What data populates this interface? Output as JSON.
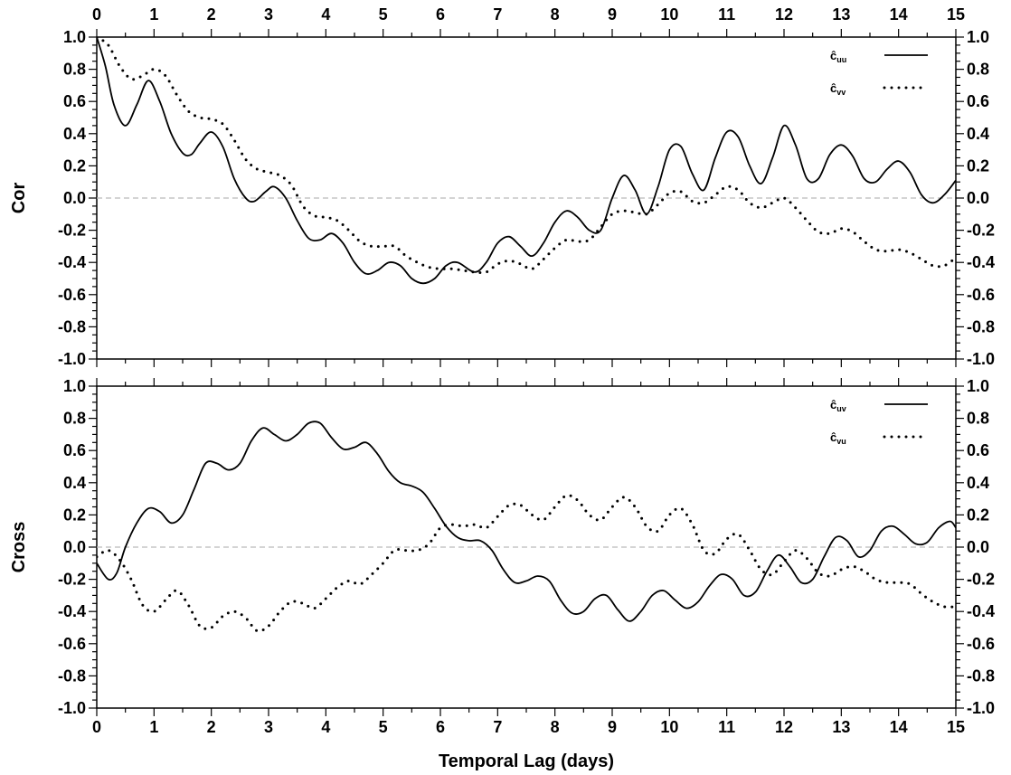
{
  "xlabel": "Temporal Lag (days)",
  "x_ticks": [
    "0",
    "1",
    "2",
    "3",
    "4",
    "5",
    "6",
    "7",
    "8",
    "9",
    "10",
    "11",
    "12",
    "13",
    "14",
    "15"
  ],
  "y_ticks": [
    "1.0",
    "0.8",
    "0.6",
    "0.4",
    "0.2",
    "0.0",
    "-0.2",
    "-0.4",
    "-0.6",
    "-0.8",
    "-1.0"
  ],
  "chart_data": [
    {
      "type": "line",
      "ylabel": "Cor",
      "xlim": [
        0,
        15
      ],
      "ylim": [
        -1.0,
        1.0
      ],
      "zero_line": {
        "style": "dashed",
        "color": "#bbbbbb"
      },
      "legend_position": "top-right",
      "series": [
        {
          "name": "ĉuu",
          "name_main": "ĉ",
          "name_sub": "uu",
          "style": "solid",
          "x": [
            0,
            0.15,
            0.3,
            0.5,
            0.7,
            0.9,
            1.1,
            1.3,
            1.5,
            1.65,
            1.8,
            2.0,
            2.2,
            2.4,
            2.6,
            2.75,
            2.95,
            3.1,
            3.3,
            3.5,
            3.7,
            3.9,
            4.1,
            4.3,
            4.5,
            4.7,
            4.9,
            5.1,
            5.3,
            5.5,
            5.7,
            5.9,
            6.1,
            6.3,
            6.6,
            6.8,
            7.0,
            7.2,
            7.4,
            7.6,
            7.8,
            8.0,
            8.2,
            8.4,
            8.6,
            8.8,
            9.0,
            9.2,
            9.4,
            9.6,
            9.8,
            10.0,
            10.2,
            10.4,
            10.6,
            10.8,
            11.0,
            11.2,
            11.4,
            11.6,
            11.8,
            12.0,
            12.2,
            12.4,
            12.6,
            12.8,
            13.0,
            13.2,
            13.4,
            13.6,
            13.8,
            14.0,
            14.2,
            14.4,
            14.6,
            14.8,
            15.0
          ],
          "y": [
            1.0,
            0.82,
            0.58,
            0.45,
            0.58,
            0.73,
            0.6,
            0.4,
            0.28,
            0.27,
            0.34,
            0.41,
            0.32,
            0.12,
            0.0,
            -0.02,
            0.04,
            0.07,
            0.0,
            -0.14,
            -0.25,
            -0.26,
            -0.22,
            -0.28,
            -0.4,
            -0.47,
            -0.45,
            -0.4,
            -0.42,
            -0.5,
            -0.53,
            -0.5,
            -0.42,
            -0.4,
            -0.46,
            -0.4,
            -0.28,
            -0.24,
            -0.3,
            -0.36,
            -0.28,
            -0.15,
            -0.08,
            -0.12,
            -0.2,
            -0.2,
            0.0,
            0.14,
            0.05,
            -0.1,
            0.07,
            0.3,
            0.32,
            0.15,
            0.05,
            0.25,
            0.41,
            0.38,
            0.2,
            0.09,
            0.25,
            0.45,
            0.33,
            0.12,
            0.12,
            0.27,
            0.33,
            0.26,
            0.12,
            0.1,
            0.18,
            0.23,
            0.16,
            0.02,
            -0.03,
            0.02,
            0.11
          ]
        },
        {
          "name": "ĉvv",
          "name_main": "ĉ",
          "name_sub": "vv",
          "style": "dotted",
          "x": [
            0,
            0.2,
            0.4,
            0.6,
            0.8,
            1.0,
            1.2,
            1.4,
            1.6,
            1.8,
            2.0,
            2.2,
            2.4,
            2.6,
            2.8,
            3.0,
            3.2,
            3.4,
            3.6,
            3.8,
            4.0,
            4.2,
            4.4,
            4.6,
            4.8,
            5.0,
            5.2,
            5.4,
            5.6,
            5.8,
            6.0,
            6.2,
            6.4,
            6.6,
            6.8,
            7.0,
            7.2,
            7.4,
            7.6,
            7.8,
            8.0,
            8.2,
            8.4,
            8.6,
            8.8,
            9.0,
            9.2,
            9.4,
            9.6,
            9.8,
            10.0,
            10.2,
            10.4,
            10.6,
            10.8,
            11.0,
            11.2,
            11.4,
            11.6,
            11.8,
            12.0,
            12.2,
            12.4,
            12.6,
            12.8,
            13.0,
            13.2,
            13.4,
            13.6,
            13.8,
            14.0,
            14.2,
            14.4,
            14.6,
            14.8,
            15.0
          ],
          "y": [
            1.0,
            0.95,
            0.82,
            0.74,
            0.76,
            0.8,
            0.76,
            0.64,
            0.54,
            0.5,
            0.49,
            0.46,
            0.36,
            0.24,
            0.18,
            0.16,
            0.14,
            0.08,
            -0.05,
            -0.11,
            -0.12,
            -0.14,
            -0.2,
            -0.27,
            -0.3,
            -0.3,
            -0.3,
            -0.36,
            -0.4,
            -0.43,
            -0.44,
            -0.44,
            -0.45,
            -0.46,
            -0.46,
            -0.41,
            -0.39,
            -0.41,
            -0.44,
            -0.38,
            -0.31,
            -0.26,
            -0.27,
            -0.26,
            -0.18,
            -0.1,
            -0.08,
            -0.09,
            -0.1,
            -0.04,
            0.03,
            0.04,
            -0.02,
            -0.03,
            0.02,
            0.07,
            0.05,
            -0.03,
            -0.06,
            -0.03,
            0.0,
            -0.06,
            -0.14,
            -0.21,
            -0.22,
            -0.19,
            -0.21,
            -0.27,
            -0.32,
            -0.33,
            -0.32,
            -0.34,
            -0.38,
            -0.42,
            -0.42,
            -0.37
          ]
        }
      ]
    },
    {
      "type": "line",
      "ylabel": "Cross",
      "xlim": [
        0,
        15
      ],
      "ylim": [
        -1.0,
        1.0
      ],
      "zero_line": {
        "style": "dashed",
        "color": "#bbbbbb"
      },
      "legend_position": "top-right",
      "series": [
        {
          "name": "ĉuv",
          "name_main": "ĉ",
          "name_sub": "uv",
          "style": "solid",
          "x": [
            0,
            0.2,
            0.35,
            0.5,
            0.7,
            0.9,
            1.1,
            1.3,
            1.5,
            1.7,
            1.9,
            2.1,
            2.3,
            2.5,
            2.7,
            2.9,
            3.1,
            3.3,
            3.5,
            3.7,
            3.9,
            4.1,
            4.3,
            4.5,
            4.7,
            4.9,
            5.1,
            5.3,
            5.5,
            5.7,
            5.9,
            6.1,
            6.3,
            6.5,
            6.7,
            6.9,
            7.1,
            7.3,
            7.5,
            7.7,
            7.9,
            8.1,
            8.3,
            8.5,
            8.7,
            8.9,
            9.1,
            9.3,
            9.5,
            9.7,
            9.9,
            10.1,
            10.3,
            10.5,
            10.7,
            10.9,
            11.1,
            11.3,
            11.5,
            11.7,
            11.9,
            12.1,
            12.3,
            12.5,
            12.7,
            12.9,
            13.1,
            13.3,
            13.5,
            13.7,
            13.9,
            14.1,
            14.3,
            14.5,
            14.7,
            14.9,
            15.0
          ],
          "y": [
            -0.1,
            -0.2,
            -0.16,
            0.0,
            0.15,
            0.24,
            0.22,
            0.15,
            0.2,
            0.36,
            0.52,
            0.52,
            0.48,
            0.52,
            0.66,
            0.74,
            0.7,
            0.66,
            0.7,
            0.77,
            0.77,
            0.68,
            0.61,
            0.62,
            0.65,
            0.58,
            0.47,
            0.4,
            0.38,
            0.34,
            0.24,
            0.13,
            0.06,
            0.04,
            0.04,
            -0.02,
            -0.14,
            -0.22,
            -0.21,
            -0.18,
            -0.21,
            -0.33,
            -0.41,
            -0.4,
            -0.32,
            -0.3,
            -0.39,
            -0.46,
            -0.4,
            -0.3,
            -0.27,
            -0.33,
            -0.38,
            -0.34,
            -0.24,
            -0.17,
            -0.2,
            -0.3,
            -0.28,
            -0.15,
            -0.05,
            -0.12,
            -0.22,
            -0.2,
            -0.06,
            0.06,
            0.04,
            -0.06,
            -0.02,
            0.1,
            0.13,
            0.08,
            0.02,
            0.03,
            0.12,
            0.16,
            0.12
          ]
        },
        {
          "name": "ĉvu",
          "name_main": "ĉ",
          "name_sub": "vu",
          "style": "dotted",
          "x": [
            0,
            0.2,
            0.4,
            0.6,
            0.8,
            1.0,
            1.2,
            1.4,
            1.6,
            1.8,
            2.0,
            2.2,
            2.4,
            2.6,
            2.8,
            3.0,
            3.2,
            3.4,
            3.6,
            3.8,
            4.0,
            4.2,
            4.4,
            4.6,
            4.8,
            5.0,
            5.2,
            5.4,
            5.6,
            5.8,
            6.0,
            6.2,
            6.4,
            6.6,
            6.8,
            7.0,
            7.2,
            7.4,
            7.6,
            7.8,
            8.0,
            8.2,
            8.4,
            8.6,
            8.8,
            9.0,
            9.2,
            9.4,
            9.6,
            9.8,
            10.0,
            10.2,
            10.4,
            10.6,
            10.8,
            11.0,
            11.2,
            11.4,
            11.6,
            11.8,
            12.0,
            12.2,
            12.4,
            12.6,
            12.8,
            13.0,
            13.2,
            13.4,
            13.6,
            13.8,
            14.0,
            14.2,
            14.4,
            14.6,
            14.8,
            15.0
          ],
          "y": [
            -0.06,
            -0.02,
            -0.08,
            -0.2,
            -0.36,
            -0.4,
            -0.33,
            -0.27,
            -0.36,
            -0.49,
            -0.5,
            -0.43,
            -0.4,
            -0.44,
            -0.52,
            -0.49,
            -0.4,
            -0.34,
            -0.35,
            -0.38,
            -0.32,
            -0.25,
            -0.21,
            -0.23,
            -0.17,
            -0.1,
            -0.02,
            -0.02,
            -0.02,
            0.02,
            0.12,
            0.14,
            0.13,
            0.14,
            0.12,
            0.19,
            0.26,
            0.26,
            0.2,
            0.17,
            0.25,
            0.32,
            0.29,
            0.2,
            0.17,
            0.25,
            0.31,
            0.25,
            0.13,
            0.1,
            0.2,
            0.24,
            0.14,
            -0.02,
            -0.04,
            0.05,
            0.08,
            -0.02,
            -0.14,
            -0.17,
            -0.09,
            -0.02,
            -0.07,
            -0.16,
            -0.18,
            -0.14,
            -0.12,
            -0.15,
            -0.2,
            -0.22,
            -0.22,
            -0.23,
            -0.29,
            -0.34,
            -0.37,
            -0.37
          ]
        }
      ]
    }
  ]
}
